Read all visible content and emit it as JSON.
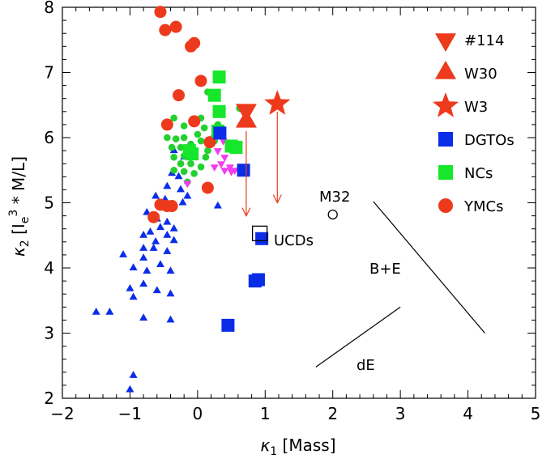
{
  "chart_data": {
    "type": "scatter",
    "xlabel": {
      "symbol": "κ",
      "sub": "1",
      "rest": " [Mass]"
    },
    "ylabel": {
      "symbol": "κ",
      "sub": "2",
      "open": " [I",
      "esub": "e",
      "esup": "3",
      "rest": " * M/L]"
    },
    "xlim": [
      -2,
      5
    ],
    "ylim": [
      2,
      8
    ],
    "x_ticks": [
      "−2",
      "−1",
      "0",
      "1",
      "2",
      "3",
      "4",
      "5"
    ],
    "y_ticks": [
      "2",
      "3",
      "4",
      "5",
      "6",
      "7",
      "8"
    ],
    "colors": {
      "red": "#ee3a1c",
      "blue": "#0b2de8",
      "green": "#16e72a",
      "magenta": "#f23cf0",
      "green_small": "#22d12e"
    },
    "legend": [
      {
        "label": "#114",
        "marker": "triangle-down",
        "color": "#ee3a1c"
      },
      {
        "label": "W30",
        "marker": "triangle-up",
        "color": "#ee3a1c"
      },
      {
        "label": "W3",
        "marker": "star",
        "color": "#ee3a1c"
      },
      {
        "label": "DGTOs",
        "marker": "square",
        "color": "#0b2de8"
      },
      {
        "label": "NCs",
        "marker": "square",
        "color": "#16e72a"
      },
      {
        "label": "YMCs",
        "marker": "circle",
        "color": "#ee3a1c"
      }
    ],
    "annotations": {
      "ucds": "UCDs",
      "m32": "M32",
      "be": "B+E",
      "de": "dE"
    },
    "special_points": {
      "n114": {
        "x": 0.72,
        "y": 6.42
      },
      "w30": {
        "x": 0.72,
        "y": 6.25
      },
      "w3": {
        "x": 1.18,
        "y": 6.52
      },
      "m32": {
        "x": 2.0,
        "y": 4.82
      },
      "ucd_open_square": {
        "x": 0.92,
        "y": 4.53
      }
    },
    "arrows": [
      {
        "x": 0.72,
        "y_from": 6.1,
        "y_to": 4.8
      },
      {
        "x": 1.18,
        "y_from": 6.4,
        "y_to": 5.0
      }
    ],
    "lines": [
      {
        "name": "B+E",
        "x": [
          2.6,
          4.25
        ],
        "y": [
          5.02,
          3.0
        ]
      },
      {
        "name": "dE",
        "x": [
          1.75,
          3.0
        ],
        "y": [
          2.48,
          3.4
        ]
      }
    ],
    "series": [
      {
        "name": "YMCs",
        "marker": "circle",
        "color": "#ee3a1c",
        "points": [
          [
            -0.55,
            7.93
          ],
          [
            -0.48,
            7.65
          ],
          [
            -0.32,
            7.7
          ],
          [
            -0.1,
            7.4
          ],
          [
            -0.05,
            7.45
          ],
          [
            -0.28,
            6.65
          ],
          [
            0.05,
            6.87
          ],
          [
            -0.45,
            6.2
          ],
          [
            -0.05,
            6.25
          ],
          [
            0.18,
            5.93
          ],
          [
            0.15,
            5.23
          ],
          [
            -0.55,
            4.97
          ],
          [
            -0.45,
            4.95
          ],
          [
            -0.38,
            4.95
          ],
          [
            -0.65,
            4.78
          ]
        ]
      },
      {
        "name": "NCs",
        "marker": "square",
        "color": "#16e72a",
        "points": [
          [
            0.32,
            6.93
          ],
          [
            0.25,
            6.65
          ],
          [
            0.32,
            6.4
          ],
          [
            0.3,
            6.1
          ],
          [
            0.5,
            5.87
          ],
          [
            0.57,
            5.85
          ],
          [
            -0.12,
            5.8
          ],
          [
            -0.08,
            5.75
          ]
        ]
      },
      {
        "name": "DGTOs",
        "marker": "square",
        "color": "#0b2de8",
        "points": [
          [
            0.33,
            6.07
          ],
          [
            0.68,
            5.5
          ],
          [
            0.95,
            4.45
          ],
          [
            0.85,
            3.8
          ],
          [
            0.9,
            3.82
          ],
          [
            0.45,
            3.12
          ]
        ]
      },
      {
        "name": "small-green",
        "marker": "circle-small",
        "color": "#22d12e",
        "points": [
          [
            0.15,
            6.7
          ],
          [
            -0.35,
            6.3
          ],
          [
            -0.2,
            6.18
          ],
          [
            0.05,
            6.3
          ],
          [
            0.3,
            6.2
          ],
          [
            0.1,
            6.15
          ],
          [
            -0.45,
            6.0
          ],
          [
            -0.32,
            5.98
          ],
          [
            -0.2,
            6.0
          ],
          [
            0.0,
            6.05
          ],
          [
            0.05,
            5.95
          ],
          [
            0.25,
            5.95
          ],
          [
            -0.38,
            5.85
          ],
          [
            -0.25,
            5.85
          ],
          [
            -0.1,
            5.9
          ],
          [
            0.15,
            5.8
          ],
          [
            -0.35,
            5.7
          ],
          [
            -0.2,
            5.72
          ],
          [
            -0.05,
            5.72
          ],
          [
            0.12,
            5.7
          ],
          [
            -0.25,
            5.6
          ],
          [
            -0.1,
            5.6
          ],
          [
            0.05,
            5.55
          ],
          [
            -0.35,
            5.5
          ],
          [
            -0.2,
            5.48
          ],
          [
            -0.05,
            5.45
          ],
          [
            -0.15,
            5.32
          ],
          [
            0.6,
            5.9
          ],
          [
            0.62,
            6.45
          ]
        ]
      },
      {
        "name": "magenta",
        "marker": "triangle-down-small",
        "color": "#f23cf0",
        "points": [
          [
            0.68,
            6.45
          ],
          [
            0.25,
            6.0
          ],
          [
            0.38,
            5.95
          ],
          [
            0.52,
            5.9
          ],
          [
            0.3,
            5.8
          ],
          [
            0.4,
            5.7
          ],
          [
            0.48,
            5.55
          ],
          [
            0.35,
            5.6
          ],
          [
            0.55,
            5.5
          ],
          [
            0.25,
            5.55
          ],
          [
            -0.15,
            5.3
          ],
          [
            0.4,
            5.5
          ],
          [
            0.5,
            5.48
          ]
        ]
      },
      {
        "name": "blue-triangles",
        "marker": "triangle-up-small",
        "color": "#0b2de8",
        "points": [
          [
            -0.35,
            5.8
          ],
          [
            -0.2,
            5.7
          ],
          [
            -0.38,
            5.45
          ],
          [
            -0.28,
            5.4
          ],
          [
            -0.45,
            5.25
          ],
          [
            -0.25,
            5.2
          ],
          [
            -0.62,
            5.1
          ],
          [
            -0.48,
            5.05
          ],
          [
            -0.38,
            4.95
          ],
          [
            -0.22,
            5.0
          ],
          [
            -0.15,
            5.1
          ],
          [
            0.3,
            4.95
          ],
          [
            -0.75,
            4.85
          ],
          [
            -0.6,
            4.75
          ],
          [
            -0.45,
            4.7
          ],
          [
            -0.35,
            4.6
          ],
          [
            -0.55,
            4.62
          ],
          [
            -0.7,
            4.55
          ],
          [
            -0.8,
            4.5
          ],
          [
            -0.62,
            4.4
          ],
          [
            -0.45,
            4.5
          ],
          [
            -0.35,
            4.42
          ],
          [
            -0.8,
            4.3
          ],
          [
            -0.65,
            4.3
          ],
          [
            -0.45,
            4.25
          ],
          [
            -0.8,
            4.15
          ],
          [
            -1.1,
            4.2
          ],
          [
            -0.95,
            4.0
          ],
          [
            -0.75,
            3.95
          ],
          [
            -0.55,
            4.05
          ],
          [
            -0.4,
            3.95
          ],
          [
            -0.8,
            3.75
          ],
          [
            -0.6,
            3.65
          ],
          [
            -0.4,
            3.6
          ],
          [
            -1.0,
            3.68
          ],
          [
            -0.95,
            3.55
          ],
          [
            -1.5,
            3.32
          ],
          [
            -1.3,
            3.32
          ],
          [
            -0.8,
            3.23
          ],
          [
            -0.4,
            3.2
          ],
          [
            -0.95,
            2.35
          ],
          [
            -1.0,
            2.13
          ]
        ]
      }
    ]
  }
}
